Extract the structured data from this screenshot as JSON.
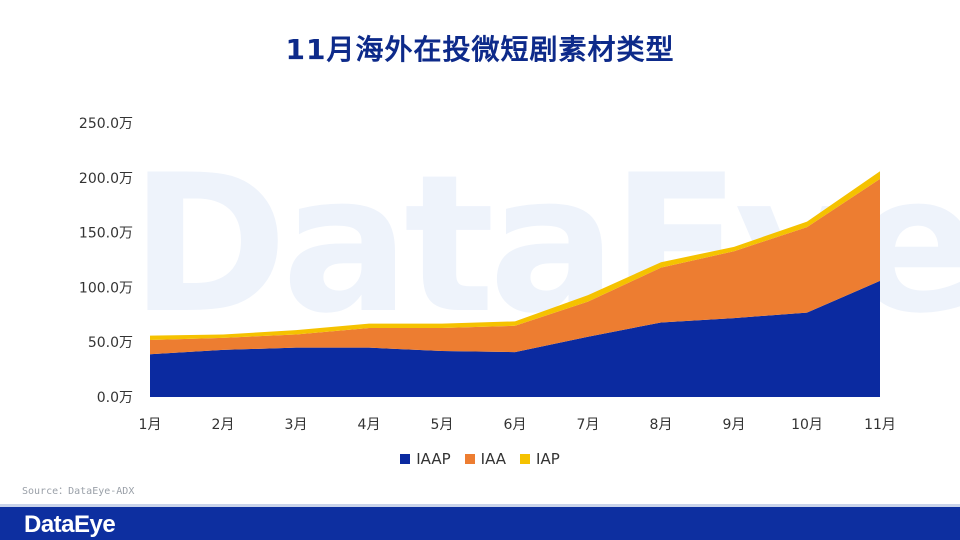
{
  "title": "11月海外在投微短剧素材类型",
  "watermark_text": "DataEye",
  "source_text": "Source：DataEye-ADX",
  "footer": {
    "logo_text": "DataEye"
  },
  "colors": {
    "title": "#0d2a8a",
    "footer_bg": "#0d2fa0"
  },
  "chart_data": {
    "type": "area",
    "stacked": true,
    "categories": [
      "1月",
      "2月",
      "3月",
      "4月",
      "5月",
      "6月",
      "7月",
      "8月",
      "9月",
      "10月",
      "11月"
    ],
    "y_ticks": [
      "0.0万",
      "50.0万",
      "100.0万",
      "150.0万",
      "200.0万",
      "250.0万"
    ],
    "ylim": [
      0,
      250
    ],
    "grid": false,
    "legend_position": "bottom",
    "series": [
      {
        "name": "IAAP",
        "color": "#0b2aa0",
        "values": [
          39,
          43,
          45,
          45,
          42,
          41,
          55,
          68,
          72,
          77,
          106
        ]
      },
      {
        "name": "IAA",
        "color": "#ed7d31",
        "values": [
          13,
          11,
          12,
          18,
          21,
          24,
          32,
          50,
          61,
          78,
          93
        ]
      },
      {
        "name": "IAP",
        "color": "#f5c200",
        "values": [
          4,
          3,
          4,
          4,
          4,
          4,
          6,
          5,
          4,
          5,
          7
        ]
      }
    ]
  }
}
